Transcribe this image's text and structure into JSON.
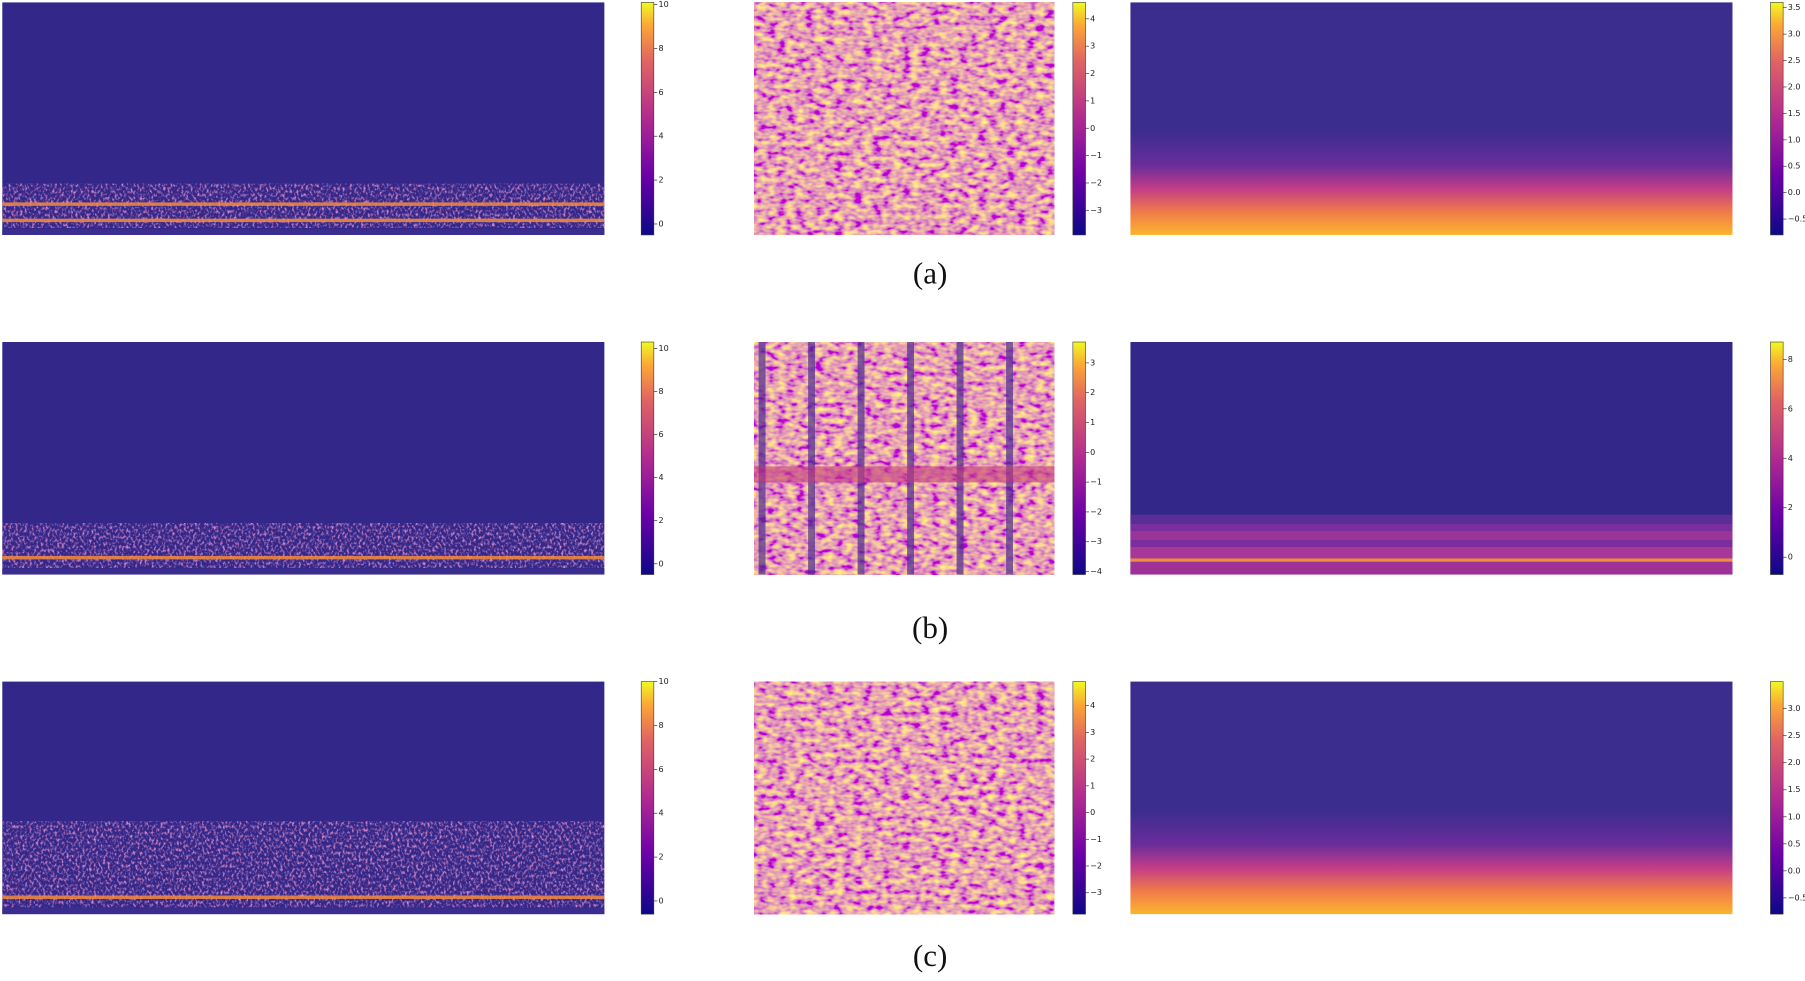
{
  "figure": {
    "rows": [
      {
        "caption": "(a)",
        "panels": [
          {
            "colorbar": {
              "lim": [
                -0.5,
                10.1
              ],
              "ticks": [
                0,
                2,
                4,
                6,
                8,
                10
              ]
            }
          },
          {
            "colorbar": {
              "lim": [
                -3.9,
                4.6
              ],
              "ticks": [
                {
                  "value": -3,
                  "label": "−3"
                },
                {
                  "value": -2,
                  "label": "−2"
                },
                {
                  "value": -1,
                  "label": "−1"
                },
                0,
                1,
                2,
                3,
                4
              ]
            }
          },
          {
            "colorbar": {
              "lim": [
                -0.8,
                3.6
              ],
              "ticks": [
                {
                  "value": -0.5,
                  "label": "−0.5"
                },
                {
                  "value": 0,
                  "label": "0.0"
                },
                0.5,
                {
                  "value": 1,
                  "label": "1.0"
                },
                1.5,
                {
                  "value": 2,
                  "label": "2.0"
                },
                2.5,
                {
                  "value": 3,
                  "label": "3.0"
                },
                3.5
              ]
            }
          }
        ]
      },
      {
        "caption": "(b)",
        "panels": [
          {
            "colorbar": {
              "lim": [
                -0.5,
                10.3
              ],
              "ticks": [
                0,
                2,
                4,
                6,
                8,
                10
              ]
            }
          },
          {
            "colorbar": {
              "lim": [
                -4.1,
                3.7
              ],
              "ticks": [
                {
                  "value": -4,
                  "label": "−4"
                },
                {
                  "value": -3,
                  "label": "−3"
                },
                {
                  "value": -2,
                  "label": "−2"
                },
                {
                  "value": -1,
                  "label": "−1"
                },
                0,
                1,
                2,
                3
              ]
            }
          },
          {
            "colorbar": {
              "lim": [
                -0.7,
                8.7
              ],
              "ticks": [
                0,
                2,
                4,
                6,
                8
              ]
            }
          }
        ]
      },
      {
        "caption": "(c)",
        "panels": [
          {
            "colorbar": {
              "lim": [
                -0.6,
                10
              ],
              "ticks": [
                0,
                2,
                4,
                6,
                8,
                10
              ]
            }
          },
          {
            "colorbar": {
              "lim": [
                -3.8,
                4.9
              ],
              "ticks": [
                {
                  "value": -3,
                  "label": "−3"
                },
                {
                  "value": -2,
                  "label": "−2"
                },
                {
                  "value": -1,
                  "label": "−1"
                },
                0,
                1,
                2,
                3,
                4
              ]
            }
          },
          {
            "colorbar": {
              "lim": [
                -0.8,
                3.5
              ],
              "ticks": [
                {
                  "value": -0.5,
                  "label": "−0.5"
                },
                {
                  "value": 0,
                  "label": "0.0"
                },
                0.5,
                {
                  "value": 1,
                  "label": "1.0"
                },
                1.5,
                {
                  "value": 2,
                  "label": "2.0"
                },
                2.5,
                {
                  "value": 3,
                  "label": "3.0"
                }
              ]
            }
          }
        ]
      }
    ]
  }
}
